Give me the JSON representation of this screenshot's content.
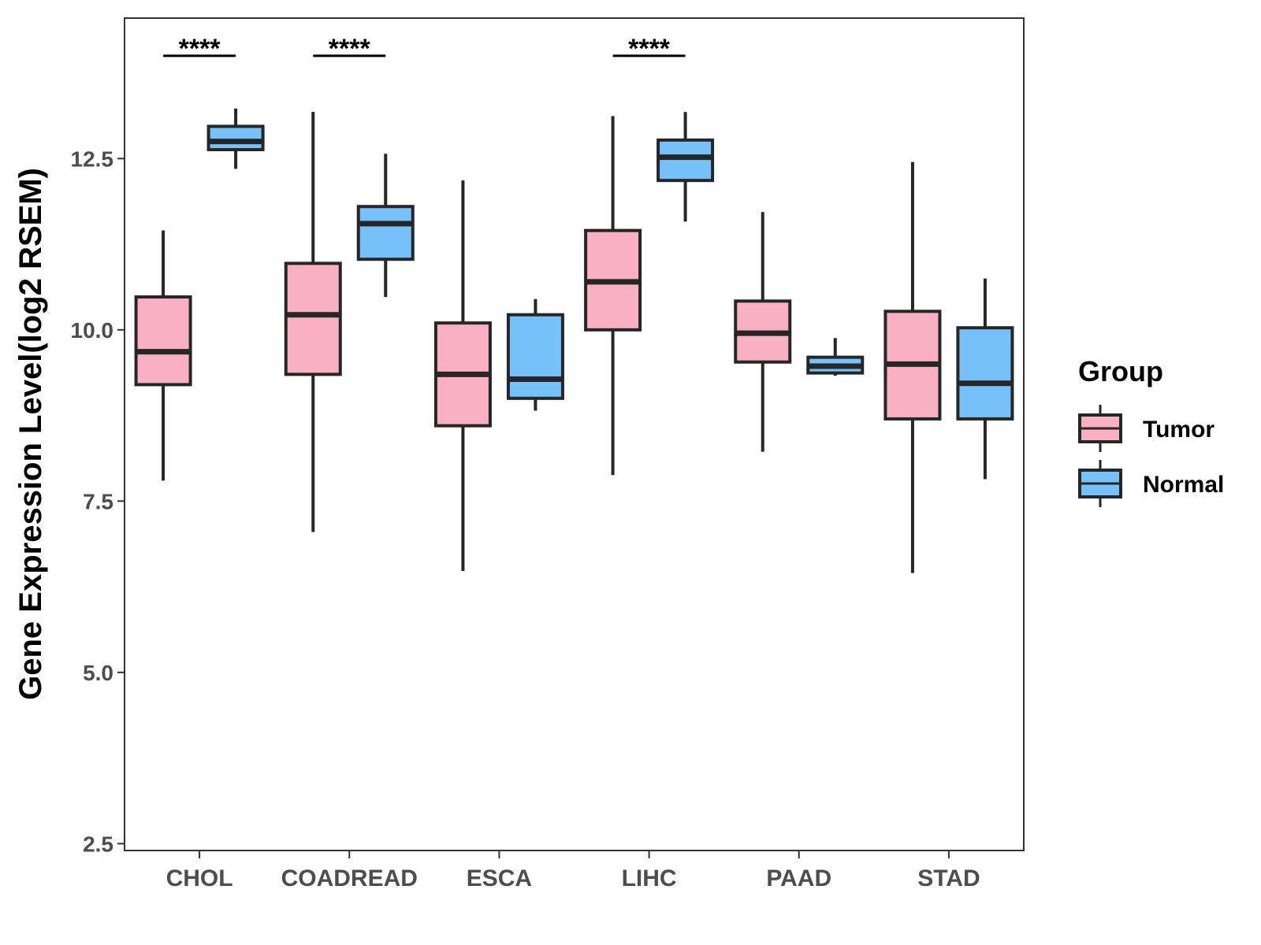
{
  "chart_data": {
    "type": "boxplot",
    "ylabel": "Gene Expression Level(log2 RSEM)",
    "xlabel": "",
    "ylim": [
      2.4,
      14.55
    ],
    "yticks": [
      2.5,
      5.0,
      7.5,
      10.0,
      12.5
    ],
    "ytick_labels": [
      "2.5",
      "5.0",
      "7.5",
      "10.0",
      "12.5"
    ],
    "categories": [
      "CHOL",
      "COADREAD",
      "ESCA",
      "LIHC",
      "PAAD",
      "STAD"
    ],
    "legend": {
      "title": "Group",
      "placement": "right",
      "items": [
        {
          "label": "Tumor",
          "color": "#F9B0C3"
        },
        {
          "label": "Normal",
          "color": "#76C1F9"
        }
      ]
    },
    "series": [
      {
        "name": "Tumor",
        "color": "#F9B0C3",
        "boxes": [
          {
            "category": "CHOL",
            "whisker_low": 7.8,
            "q1": 9.2,
            "median": 9.68,
            "q3": 10.48,
            "whisker_high": 11.45
          },
          {
            "category": "COADREAD",
            "whisker_low": 7.05,
            "q1": 9.35,
            "median": 10.22,
            "q3": 10.97,
            "whisker_high": 13.18
          },
          {
            "category": "ESCA",
            "whisker_low": 6.48,
            "q1": 8.6,
            "median": 9.35,
            "q3": 10.1,
            "whisker_high": 12.18
          },
          {
            "category": "LIHC",
            "whisker_low": 7.88,
            "q1": 10.0,
            "median": 10.7,
            "q3": 11.45,
            "whisker_high": 13.12
          },
          {
            "category": "PAAD",
            "whisker_low": 8.22,
            "q1": 9.53,
            "median": 9.95,
            "q3": 10.42,
            "whisker_high": 11.72
          },
          {
            "category": "STAD",
            "whisker_low": 6.45,
            "q1": 8.7,
            "median": 9.5,
            "q3": 10.27,
            "whisker_high": 12.45
          }
        ]
      },
      {
        "name": "Normal",
        "color": "#76C1F9",
        "boxes": [
          {
            "category": "CHOL",
            "whisker_low": 12.35,
            "q1": 12.63,
            "median": 12.75,
            "q3": 12.97,
            "whisker_high": 13.23
          },
          {
            "category": "COADREAD",
            "whisker_low": 10.48,
            "q1": 11.03,
            "median": 11.55,
            "q3": 11.8,
            "whisker_high": 12.57
          },
          {
            "category": "ESCA",
            "whisker_low": 8.82,
            "q1": 9.0,
            "median": 9.28,
            "q3": 10.22,
            "whisker_high": 10.45
          },
          {
            "category": "LIHC",
            "whisker_low": 11.58,
            "q1": 12.18,
            "median": 12.52,
            "q3": 12.77,
            "whisker_high": 13.18
          },
          {
            "category": "PAAD",
            "whisker_low": 9.33,
            "q1": 9.37,
            "median": 9.47,
            "q3": 9.6,
            "whisker_high": 9.88
          },
          {
            "category": "STAD",
            "whisker_low": 7.82,
            "q1": 8.7,
            "median": 9.22,
            "q3": 10.03,
            "whisker_high": 10.75
          }
        ]
      }
    ],
    "annotations": [
      {
        "category": "CHOL",
        "label": "****",
        "y": 14.0
      },
      {
        "category": "COADREAD",
        "label": "****",
        "y": 14.0
      },
      {
        "category": "LIHC",
        "label": "****",
        "y": 14.0
      }
    ]
  }
}
